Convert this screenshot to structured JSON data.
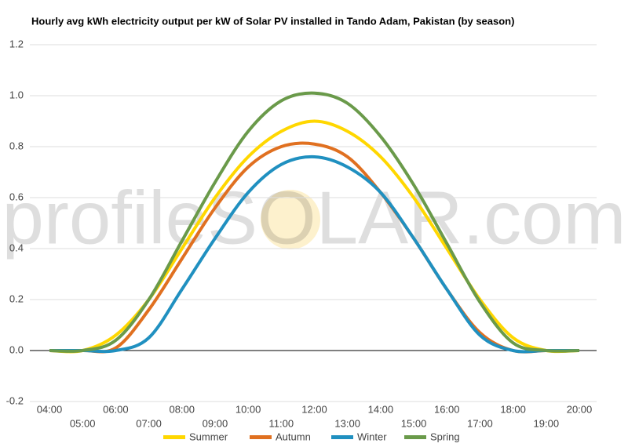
{
  "chart_data": {
    "type": "line",
    "title": "Hourly avg kWh electricity output per kW of Solar PV installed in Tando Adam, Pakistan (by season)",
    "watermark": "profileSOLAR.com",
    "categories": [
      "04:00",
      "05:00",
      "06:00",
      "07:00",
      "08:00",
      "09:00",
      "10:00",
      "11:00",
      "12:00",
      "13:00",
      "14:00",
      "15:00",
      "16:00",
      "17:00",
      "18:00",
      "19:00",
      "20:00"
    ],
    "series": [
      {
        "name": "Summer",
        "color": "#ffd700",
        "values": [
          0,
          0,
          0.06,
          0.2,
          0.4,
          0.6,
          0.76,
          0.86,
          0.9,
          0.86,
          0.76,
          0.6,
          0.4,
          0.2,
          0.05,
          0,
          0
        ]
      },
      {
        "name": "Autumn",
        "color": "#e07020",
        "values": [
          0,
          0,
          0.01,
          0.16,
          0.36,
          0.56,
          0.72,
          0.8,
          0.81,
          0.76,
          0.62,
          0.44,
          0.24,
          0.07,
          0,
          0,
          0
        ]
      },
      {
        "name": "Winter",
        "color": "#2090c0",
        "values": [
          0,
          0,
          0,
          0.05,
          0.24,
          0.44,
          0.62,
          0.73,
          0.76,
          0.72,
          0.62,
          0.44,
          0.24,
          0.06,
          0,
          0,
          0
        ]
      },
      {
        "name": "Spring",
        "color": "#6a9a4a",
        "values": [
          0,
          0,
          0.04,
          0.2,
          0.43,
          0.66,
          0.86,
          0.98,
          1.01,
          0.97,
          0.84,
          0.65,
          0.42,
          0.19,
          0.03,
          0,
          0
        ]
      }
    ],
    "ylim": [
      -0.2,
      1.2
    ],
    "yticks": [
      -0.2,
      {
        "value": 0,
        "label": "0.0"
      },
      0.2,
      0.4,
      0.6,
      0.8,
      {
        "value": 1,
        "label": "1.0"
      },
      1.2
    ],
    "grid": true
  }
}
